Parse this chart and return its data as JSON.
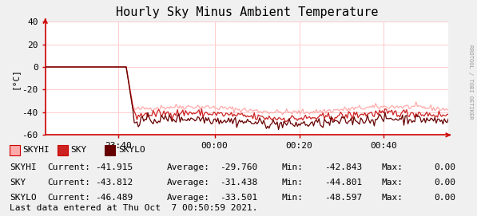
{
  "title": "Hourly Sky Minus Ambient Temperature",
  "ylabel": "[°C]",
  "ylim": [
    -60,
    40
  ],
  "yticks": [
    -60,
    -40,
    -20,
    0,
    20,
    40
  ],
  "xlim": [
    0,
    100
  ],
  "xtick_labels": [
    "23:40",
    "00:00",
    "00:20",
    "00:40"
  ],
  "xtick_positions": [
    18,
    42,
    63,
    84
  ],
  "background_color": "#f0f0f0",
  "plot_bg_color": "#ffffff",
  "grid_color": "#ffcccc",
  "title_fontsize": 11,
  "tick_fontsize": 8,
  "stats_fontsize": 8,
  "watermark": "RRDTOOL / TOBI OETIKER",
  "skyhi_color": "#ffaaaa",
  "sky_color": "#cc2222",
  "skylo_color": "#660000",
  "axis_color": "#cc0000",
  "stats": [
    {
      "name": "SKYHI",
      "current": -41.915,
      "average": -29.76,
      "min": -42.843,
      "max": 0.0
    },
    {
      "name": "SKY",
      "current": -43.812,
      "average": -31.438,
      "min": -44.801,
      "max": 0.0
    },
    {
      "name": "SKYLO",
      "current": -46.489,
      "average": -33.501,
      "min": -48.597,
      "max": 0.0
    }
  ],
  "last_data": "Last data entered at Thu Oct  7 00:50:59 2021."
}
